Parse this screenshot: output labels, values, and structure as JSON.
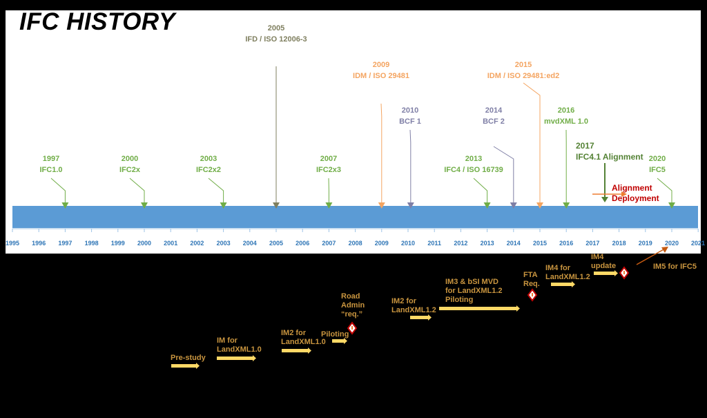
{
  "title": "IFC HISTORY",
  "axis": {
    "start_label": "1995",
    "end_label": "2021",
    "years": [
      "1996",
      "1997",
      "1998",
      "1999",
      "2000",
      "2001",
      "2002",
      "2003",
      "2004",
      "2005",
      "2006",
      "2007",
      "2008",
      "2009",
      "2010",
      "2011",
      "2012",
      "2013",
      "2014",
      "2015",
      "2016",
      "2017",
      "2018",
      "2019",
      "2020"
    ]
  },
  "colors": {
    "bar": "#5b9bd5",
    "green": "#70ad47",
    "dark_green": "#548235",
    "orange": "#f4a460",
    "slate": "#7f7fa6",
    "olive": "#7f7f5f",
    "red": "#c00000",
    "phase_text": "#c9953f",
    "phase_bar": "#ffd966"
  },
  "milestones": [
    {
      "year": 1997,
      "label_year": "1997",
      "label": "IFC1.0",
      "color": "green"
    },
    {
      "year": 2000,
      "label_year": "2000",
      "label": "IFC2x",
      "color": "green"
    },
    {
      "year": 2003,
      "label_year": "2003",
      "label": "IFC2x2",
      "color": "green"
    },
    {
      "year": 2005,
      "label_year": "2005",
      "label": "IFD / ISO 12006-3",
      "color": "olive"
    },
    {
      "year": 2007,
      "label_year": "2007",
      "label": "IFC2x3",
      "color": "green"
    },
    {
      "year": 2009,
      "label_year": "2009",
      "label": "IDM / ISO 29481",
      "color": "orange"
    },
    {
      "year": 2010.1,
      "label_year": "2010",
      "label": "BCF 1",
      "color": "slate"
    },
    {
      "year": 2013,
      "label_year": "2013",
      "label": "IFC4 / ISO 16739",
      "color": "green"
    },
    {
      "year": 2014,
      "label_year": "2014",
      "label": "BCF 2",
      "color": "slate"
    },
    {
      "year": 2015,
      "label_year": "2015",
      "label": "IDM / ISO 29481:ed2",
      "color": "orange"
    },
    {
      "year": 2016,
      "label_year": "2016",
      "label": "mvdXML 1.0",
      "color": "green"
    },
    {
      "year": 2020,
      "label_year": "2020",
      "label": "IFC5",
      "color": "green"
    }
  ],
  "alignment": {
    "year_label": "2017",
    "label": "IFC4.1 Alignment",
    "deployment_line1": "Alignment",
    "deployment_line2": "Deployment"
  },
  "phases": {
    "prestudy": "Pre-study",
    "im_l1": [
      "IM for",
      "LandXML1.0"
    ],
    "im2_l1": [
      "IM2 for",
      "LandXML1.0"
    ],
    "piloting1": "Piloting",
    "road_admin": [
      "Road",
      "Admin",
      "“req.”"
    ],
    "im2_l12": [
      "IM2 for",
      "LandXML1.2"
    ],
    "im3": [
      "IM3 & bSI MVD",
      "for LandXML1.2",
      "Piloting"
    ],
    "fta": [
      "FTA",
      "Req."
    ],
    "im4": [
      "IM4 for",
      "LandXML1.2"
    ],
    "im4_update": [
      "IM4",
      "update"
    ],
    "im5": "IM5 for IFC5"
  }
}
